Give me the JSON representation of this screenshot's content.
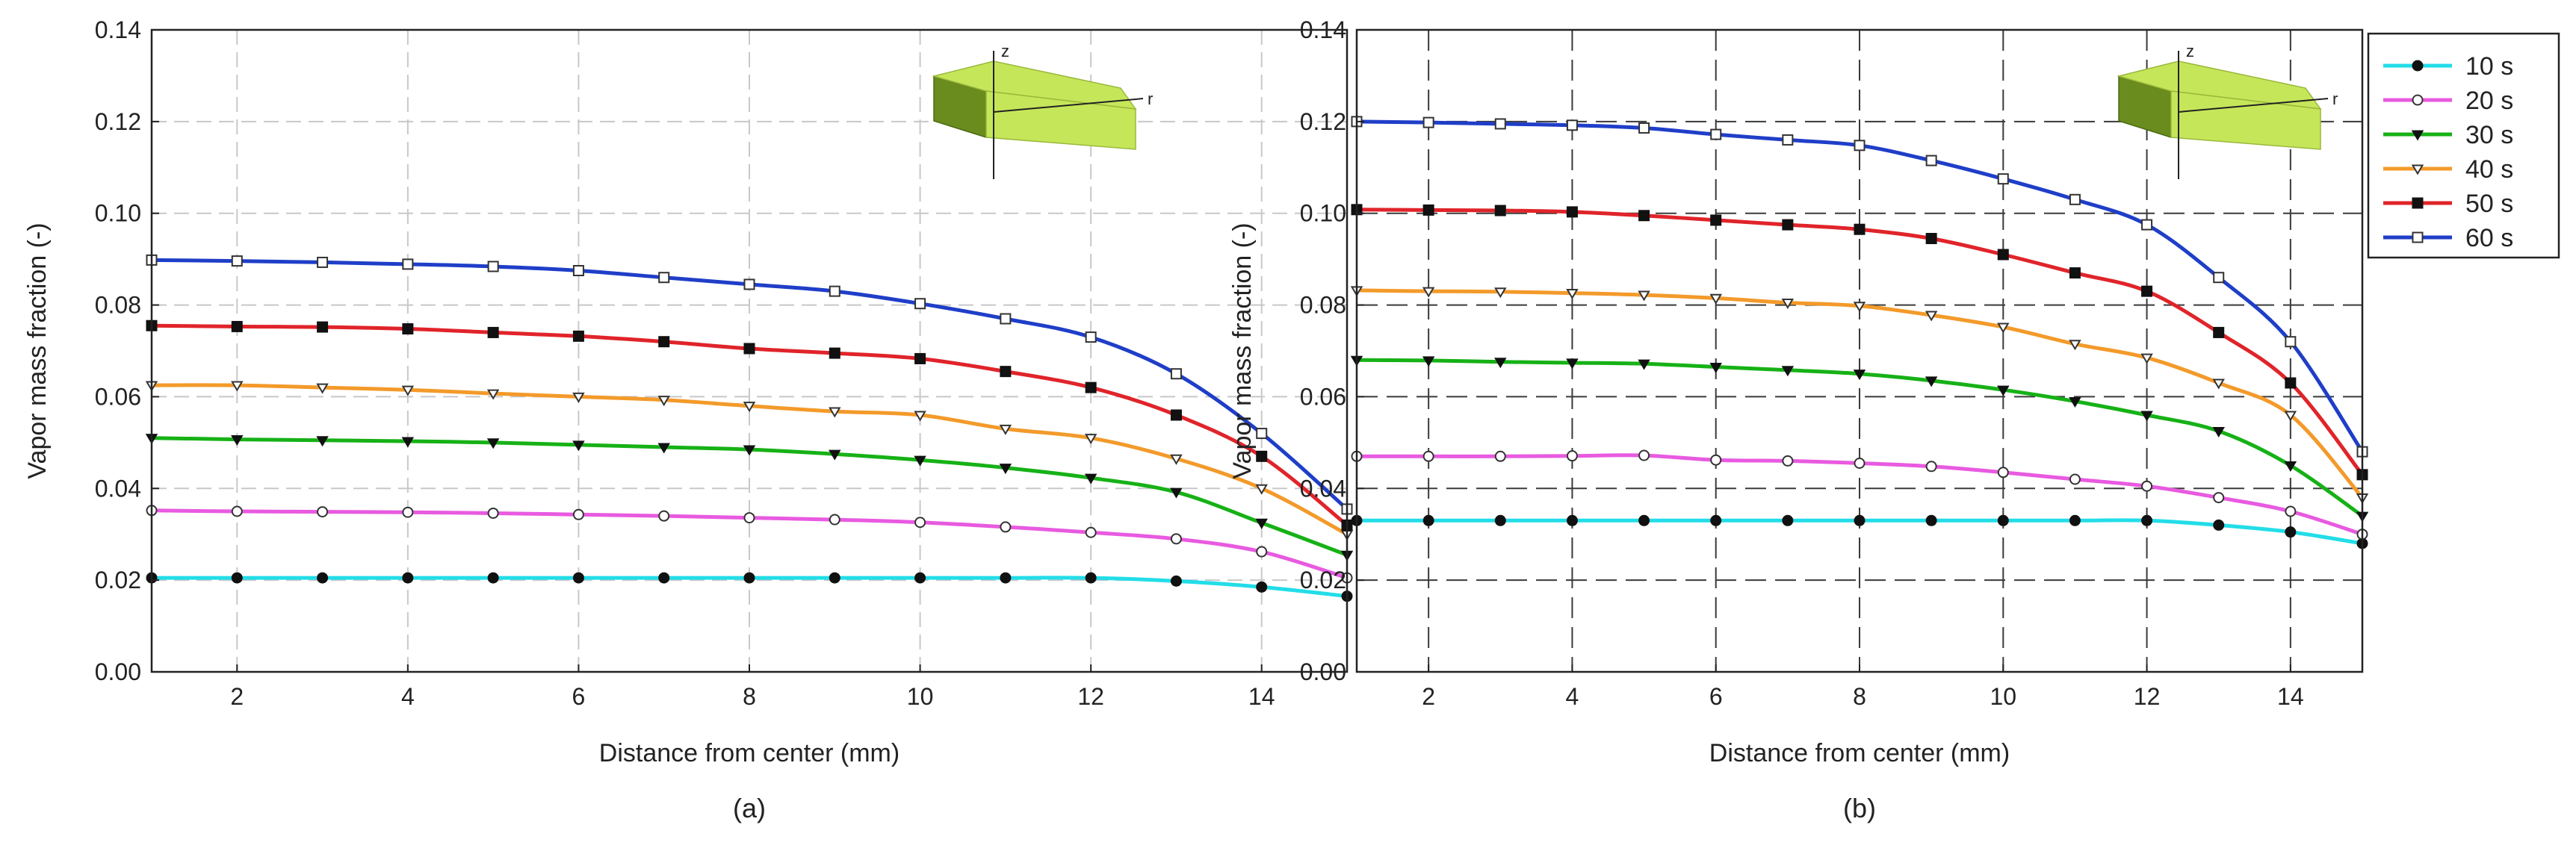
{
  "legend": {
    "entries": [
      {
        "label": "10 s",
        "color": "#22dde8",
        "marker": "filled-circle"
      },
      {
        "label": "20 s",
        "color": "#e85ae0",
        "marker": "open-circle"
      },
      {
        "label": "30 s",
        "color": "#16b116",
        "marker": "filled-triangle-down"
      },
      {
        "label": "40 s",
        "color": "#f39a2a",
        "marker": "open-triangle-down"
      },
      {
        "label": "50 s",
        "color": "#e0242a",
        "marker": "filled-square"
      },
      {
        "label": "60 s",
        "color": "#1f3ec8",
        "marker": "open-square"
      }
    ]
  },
  "inset": {
    "z_label": "z",
    "r_label": "r",
    "body_color": "#c6e65a",
    "side_color": "#6a8c1e"
  },
  "chart_data": [
    {
      "type": "line",
      "panel_label": "(a)",
      "xlabel": "Distance from center (mm)",
      "ylabel": "Vapor mass fraction (-)",
      "xlim": [
        1,
        15
      ],
      "ylim": [
        0,
        0.14
      ],
      "xticks": [
        2,
        4,
        6,
        8,
        10,
        12,
        14
      ],
      "yticks": [
        0.0,
        0.02,
        0.04,
        0.06,
        0.08,
        0.1,
        0.12,
        0.14
      ],
      "ytick_labels": [
        "0.00",
        "0.02",
        "0.04",
        "0.06",
        "0.08",
        "0.10",
        "0.12",
        "0.14"
      ],
      "grid": true,
      "x": [
        1,
        2,
        3,
        4,
        5,
        6,
        7,
        8,
        9,
        10,
        11,
        12,
        13,
        14,
        15
      ],
      "series": [
        {
          "name": "10 s",
          "values": [
            0.0205,
            0.0205,
            0.0205,
            0.0205,
            0.0205,
            0.0205,
            0.0205,
            0.0205,
            0.0205,
            0.0205,
            0.0205,
            0.0205,
            0.0198,
            0.0185,
            0.0165
          ]
        },
        {
          "name": "20 s",
          "values": [
            0.0352,
            0.035,
            0.0349,
            0.0348,
            0.0346,
            0.0343,
            0.034,
            0.0336,
            0.0332,
            0.0326,
            0.0316,
            0.0304,
            0.029,
            0.0262,
            0.0205
          ]
        },
        {
          "name": "30 s",
          "values": [
            0.051,
            0.0507,
            0.0505,
            0.0503,
            0.05,
            0.0495,
            0.049,
            0.0485,
            0.0475,
            0.0462,
            0.0445,
            0.0423,
            0.0392,
            0.0325,
            0.0255
          ]
        },
        {
          "name": "40 s",
          "values": [
            0.0625,
            0.0625,
            0.062,
            0.0615,
            0.0607,
            0.06,
            0.0593,
            0.058,
            0.0568,
            0.056,
            0.053,
            0.051,
            0.0465,
            0.04,
            0.03
          ]
        },
        {
          "name": "50 s",
          "values": [
            0.0755,
            0.0753,
            0.0752,
            0.0748,
            0.074,
            0.0732,
            0.072,
            0.0705,
            0.0695,
            0.0683,
            0.0655,
            0.062,
            0.056,
            0.047,
            0.032
          ]
        },
        {
          "name": "60 s",
          "values": [
            0.0898,
            0.0896,
            0.0893,
            0.0889,
            0.0884,
            0.0875,
            0.086,
            0.0845,
            0.083,
            0.0803,
            0.077,
            0.073,
            0.065,
            0.052,
            0.0355
          ]
        }
      ]
    },
    {
      "type": "line",
      "panel_label": "(b)",
      "xlabel": "Distance from center (mm)",
      "ylabel": "Vapor mass fraction (-)",
      "xlim": [
        1,
        15
      ],
      "ylim": [
        0,
        0.14
      ],
      "xticks": [
        2,
        4,
        6,
        8,
        10,
        12,
        14
      ],
      "yticks": [
        0.0,
        0.02,
        0.04,
        0.06,
        0.08,
        0.1,
        0.12,
        0.14
      ],
      "ytick_labels": [
        "0.00",
        "0.02",
        "0.04",
        "0.06",
        "0.08",
        "0.10",
        "0.12",
        "0.14"
      ],
      "grid": true,
      "x": [
        1,
        2,
        3,
        4,
        5,
        6,
        7,
        8,
        9,
        10,
        11,
        12,
        13,
        14,
        15
      ],
      "series": [
        {
          "name": "10 s",
          "values": [
            0.033,
            0.033,
            0.033,
            0.033,
            0.033,
            0.033,
            0.033,
            0.033,
            0.033,
            0.033,
            0.033,
            0.033,
            0.032,
            0.0305,
            0.028
          ]
        },
        {
          "name": "20 s",
          "values": [
            0.047,
            0.047,
            0.047,
            0.0471,
            0.0472,
            0.0462,
            0.046,
            0.0455,
            0.0448,
            0.0435,
            0.042,
            0.0405,
            0.038,
            0.035,
            0.03
          ]
        },
        {
          "name": "30 s",
          "values": [
            0.068,
            0.0679,
            0.0676,
            0.0674,
            0.0672,
            0.0665,
            0.0658,
            0.065,
            0.0635,
            0.0615,
            0.059,
            0.056,
            0.0525,
            0.045,
            0.034
          ]
        },
        {
          "name": "40 s",
          "values": [
            0.0832,
            0.083,
            0.0829,
            0.0826,
            0.0822,
            0.0815,
            0.0805,
            0.0798,
            0.0778,
            0.0752,
            0.0715,
            0.0685,
            0.063,
            0.056,
            0.038
          ]
        },
        {
          "name": "50 s",
          "values": [
            0.1008,
            0.1007,
            0.1006,
            0.1003,
            0.0995,
            0.0985,
            0.0975,
            0.0965,
            0.0945,
            0.091,
            0.087,
            0.083,
            0.074,
            0.063,
            0.043
          ]
        },
        {
          "name": "60 s",
          "values": [
            0.12,
            0.1198,
            0.1195,
            0.1192,
            0.1186,
            0.1172,
            0.116,
            0.1148,
            0.1115,
            0.1075,
            0.103,
            0.0975,
            0.086,
            0.072,
            0.048
          ]
        }
      ]
    }
  ]
}
